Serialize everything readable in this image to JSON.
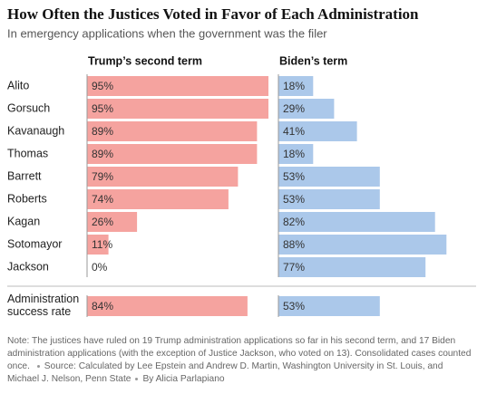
{
  "chart_data": {
    "type": "bar",
    "orientation": "horizontal",
    "title": "How Often the Justices Voted in Favor of Each Administration",
    "subtitle": "In emergency applications when the government was the filer",
    "categories": [
      "Alito",
      "Gorsuch",
      "Kavanaugh",
      "Thomas",
      "Barrett",
      "Roberts",
      "Kagan",
      "Sotomayor",
      "Jackson",
      "Administration success rate"
    ],
    "series": [
      {
        "name": "Trump’s second term",
        "color": "#f5a39f",
        "values": [
          95,
          95,
          89,
          89,
          79,
          74,
          26,
          11,
          0,
          84
        ],
        "value_labels": [
          "95%",
          "95%",
          "89%",
          "89%",
          "79%",
          "74%",
          "26%",
          "11%",
          "0%",
          "84%"
        ]
      },
      {
        "name": "Biden’s term",
        "color": "#abc8ea",
        "values": [
          18,
          29,
          41,
          18,
          53,
          53,
          82,
          88,
          77,
          53
        ],
        "value_labels": [
          "18%",
          "29%",
          "41%",
          "18%",
          "53%",
          "53%",
          "82%",
          "88%",
          "77%",
          "53%"
        ]
      }
    ],
    "note": "Note: The justices have ruled on 19 Trump administration applications so far in his second term, and 17 Biden administration applications (with the exception of Justice Jackson, who voted on 13). Consolidated cases counted once.",
    "source": "Source: Calculated by Lee Epstein and Andrew D. Martin, Washington University in St. Louis, and Michael J. Nelson, Penn State",
    "byline": "By Alicia Parlapiano"
  }
}
